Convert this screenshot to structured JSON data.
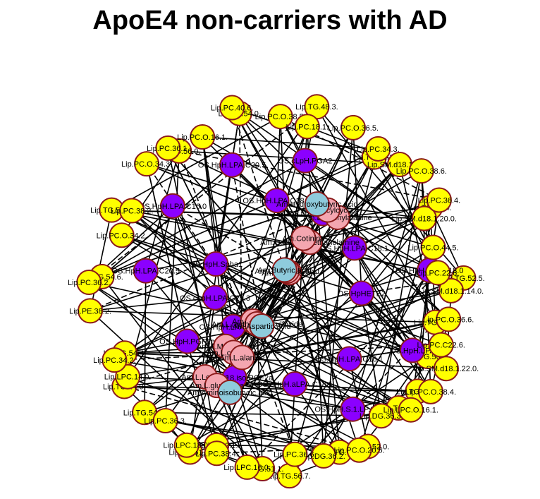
{
  "title": "ApoE4 non-carriers with AD",
  "colors": {
    "lipid": "#ffff00",
    "oxidative_stress": "#8b00ff",
    "amine": "#f4a6b0",
    "other": "#8ecbdc",
    "node_border": "#8b1a1a",
    "edge": "#000000"
  },
  "nodes": [
    {
      "label": "Lip.TG.50.0.",
      "group": "lipid"
    },
    {
      "label": "Lip.TG.56.8.",
      "group": "lipid"
    },
    {
      "label": "Lip.TG.52.0.",
      "group": "lipid"
    },
    {
      "label": "Lip.TG.56.7.",
      "group": "lipid"
    },
    {
      "label": "Lip.TG.52.1.",
      "group": "lipid"
    },
    {
      "label": "Lip.TG.54.3.",
      "group": "lipid"
    },
    {
      "label": "Lip.TG.54.4.",
      "group": "lipid"
    },
    {
      "label": "Lip.TG.54.6.",
      "group": "lipid"
    },
    {
      "label": "Lip.TG.52.3.",
      "group": "lipid"
    },
    {
      "label": "Lip.TG.56.0.",
      "group": "lipid"
    },
    {
      "label": "Lip.TG.54.0.",
      "group": "lipid"
    },
    {
      "label": "Lip.TG.48.3.",
      "group": "lipid"
    },
    {
      "label": "Lip.TG.46.1.",
      "group": "lipid"
    },
    {
      "label": "Lip.TG.52.4.",
      "group": "lipid"
    },
    {
      "label": "Lip.TG.52.5.",
      "group": "lipid"
    },
    {
      "label": "Lip.TG.56.9.",
      "group": "lipid"
    },
    {
      "label": "Lip.TG.44.",
      "group": "lipid"
    },
    {
      "label": "Lip.TG.48.",
      "group": "lipid"
    },
    {
      "label": "Lip.TG.51.1.",
      "group": "lipid"
    },
    {
      "label": "Lip.TG.51.2.",
      "group": "lipid"
    },
    {
      "label": "Lip.TG.44.0.",
      "group": "lipid"
    },
    {
      "label": "OS.HpHETE2",
      "group": "oxidative_stress"
    },
    {
      "label": "OS.HpH.PGF2a",
      "group": "oxidative_stress"
    },
    {
      "label": "OS.cLpH.PGA2",
      "group": "oxidative_stress"
    },
    {
      "label": "OS.HpH.S.1.LP.C18.1",
      "group": "oxidative_stress"
    },
    {
      "label": "OS.HpH.Spha1",
      "group": "oxidative_stress"
    },
    {
      "label": "OS.HpH.LPA.C18.1",
      "group": "oxidative_stress"
    },
    {
      "label": "OS.LpH.18.iso.PGF2a",
      "group": "oxidative_stress"
    },
    {
      "label": "OS.HpH.LPA.C20.5",
      "group": "oxidative_stress"
    },
    {
      "label": "OS.HpH.LPA",
      "group": "oxidative_stress"
    },
    {
      "label": "OS.cLpH.LPA.C20.3",
      "group": "oxidative_stress"
    },
    {
      "label": "OS.cLpH.LPA.C20.4",
      "group": "oxidative_stress"
    },
    {
      "label": "OS.cHpH.aLPA.C18.1",
      "group": "oxidative_stress"
    },
    {
      "label": "OS.HpH.LPA.C16.0",
      "group": "oxidative_stress"
    },
    {
      "label": "OS.HpH.LPA.C18.0",
      "group": "oxidative_stress"
    },
    {
      "label": "OS.HpH.LPA.C18.2",
      "group": "oxidative_stress"
    },
    {
      "label": "OS.HpH.LPA.C18.1",
      "group": "oxidative_stress"
    },
    {
      "label": "OS.HpH.LPA.C16.1",
      "group": "oxidative_stress"
    },
    {
      "label": "OS.HpH.LPA.C20.5",
      "group": "oxidative_stress"
    },
    {
      "label": "Am.L.Methionine",
      "group": "amine"
    },
    {
      "label": "Am.L.Phenylalanine",
      "group": "amine"
    },
    {
      "label": "Am.L.Leucine",
      "group": "amine"
    },
    {
      "label": "Am.L.Isoleucine",
      "group": "amine"
    },
    {
      "label": "Am.L.Valine",
      "group": "amine"
    },
    {
      "label": "Am.O.Phosphoethanolamine",
      "group": "amine"
    },
    {
      "label": "Am.L.carnosine",
      "group": "amine"
    },
    {
      "label": "Am.Glycylcyclic",
      "group": "amine"
    },
    {
      "label": "Am.L.glutamine",
      "group": "amine"
    },
    {
      "label": "Am.L.Aspartic.acid",
      "group": "amine"
    },
    {
      "label": "Am.L.methionine.sulfoxide",
      "group": "amine"
    },
    {
      "label": "Am.Cotinine",
      "group": "amine"
    },
    {
      "label": "Am.L.alanine",
      "group": "amine"
    },
    {
      "label": "Am.Hydroxybutyric.acid",
      "group": "other"
    },
    {
      "label": "Am.Aminoisobutyric.acid",
      "group": "other"
    },
    {
      "label": "Am.Butyric.acid",
      "group": "other"
    },
    {
      "label": "Am.Aspartic.acid",
      "group": "other"
    },
    {
      "label": "Lip.SM.d18.1.18.0.",
      "group": "lipid"
    },
    {
      "label": "Lip.SM.d18.1.20.0.",
      "group": "lipid"
    },
    {
      "label": "Lip.SM.d18.1.14.0.",
      "group": "lipid"
    },
    {
      "label": "Lip.SM.d18.1.22.0.",
      "group": "lipid"
    },
    {
      "label": "Lip.DG.36.3.",
      "group": "lipid"
    },
    {
      "label": "Lip.DG.36.2.",
      "group": "lipid"
    },
    {
      "label": "Lip.LPC.16.0.",
      "group": "lipid"
    },
    {
      "label": "Lip.LPC.18.0.",
      "group": "lipid"
    },
    {
      "label": "Lip.LPC.14.0.",
      "group": "lipid"
    },
    {
      "label": "Lip.PE.38.2.",
      "group": "lipid"
    },
    {
      "label": "Lip.PC.O.34.2.",
      "group": "lipid"
    },
    {
      "label": "Lip.PC.O.34.3.",
      "group": "lipid"
    },
    {
      "label": "Lip.PC.O.16.1.",
      "group": "lipid"
    },
    {
      "label": "Lip.PC.O.38.5.",
      "group": "lipid"
    },
    {
      "label": "Lip.PC.O.36.5.",
      "group": "lipid"
    },
    {
      "label": "Lip.PC.O.38.6.",
      "group": "lipid"
    },
    {
      "label": "Lip.PC.O.44.5.",
      "group": "lipid"
    },
    {
      "label": "Lip.PC.O.36.6.",
      "group": "lipid"
    },
    {
      "label": "Lip.PC.O.38.4.",
      "group": "lipid"
    },
    {
      "label": "Lip.PC.O.20.5.",
      "group": "lipid"
    },
    {
      "label": "Lip.PC.36.6.",
      "group": "lipid"
    },
    {
      "label": "Lip.PC.38.4.",
      "group": "lipid"
    },
    {
      "label": "Lip.PC.36.3.",
      "group": "lipid"
    },
    {
      "label": "Lip.PC.34.2.",
      "group": "lipid"
    },
    {
      "label": "Lip.PC.36.2.",
      "group": "lipid"
    },
    {
      "label": "Lip.PC.38.2.",
      "group": "lipid"
    },
    {
      "label": "Lip.PC.36.1.",
      "group": "lipid"
    },
    {
      "label": "Lip.PC.40.6.",
      "group": "lipid"
    },
    {
      "label": "Lip.PC.18.1.",
      "group": "lipid"
    },
    {
      "label": "Lip.PC.34.3.",
      "group": "lipid"
    },
    {
      "label": "Lip.PC.36.4.",
      "group": "lipid"
    },
    {
      "label": "Lip.PC.22.6.",
      "group": "lipid"
    },
    {
      "label": "Lip.PC.C22.6.",
      "group": "lipid"
    },
    {
      "label": "Lip.LPC.O.16.1.",
      "group": "lipid"
    }
  ]
}
